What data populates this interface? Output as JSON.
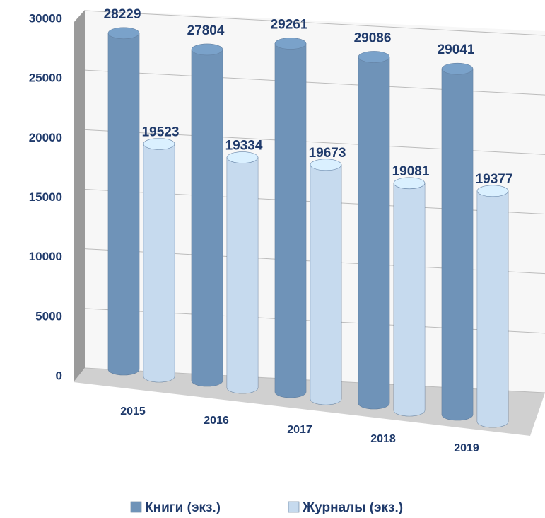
{
  "chart_data": {
    "type": "bar3d",
    "categories": [
      "2015",
      "2016",
      "2017",
      "2018",
      "2019"
    ],
    "series": [
      {
        "name": "Книги (экз.)",
        "color": "#6f93b8",
        "values": [
          28229,
          27804,
          29261,
          29086,
          29041
        ]
      },
      {
        "name": "Журналы (экз.)",
        "color": "#c6daee",
        "values": [
          19523,
          19334,
          19673,
          19081,
          19377
        ]
      }
    ],
    "ylim": [
      0,
      30000
    ],
    "yticks": [
      0,
      5000,
      10000,
      15000,
      20000,
      25000,
      30000
    ],
    "grid": true,
    "legend": "bottom"
  }
}
